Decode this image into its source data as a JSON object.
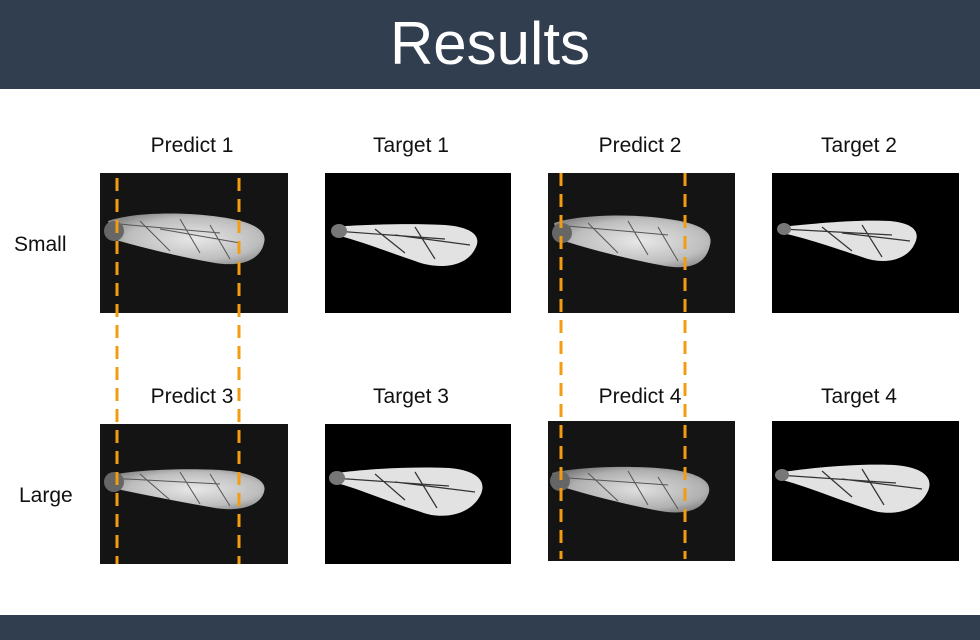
{
  "header": {
    "title": "Results"
  },
  "columns": [
    "Predict 1",
    "Target 1",
    "Predict 2",
    "Target 2"
  ],
  "columns_row2": [
    "Predict 3",
    "Target 3",
    "Predict 4",
    "Target 4"
  ],
  "rows": [
    "Small",
    "Large"
  ],
  "colors": {
    "header_bg": "#313e4f",
    "guide_line": "#f39c12"
  }
}
